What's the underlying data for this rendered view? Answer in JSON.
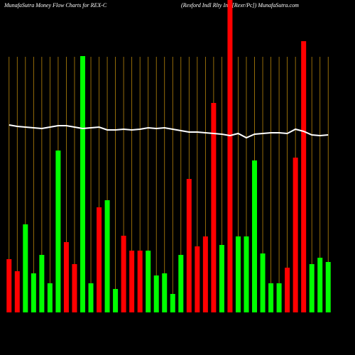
{
  "chart_data": {
    "type": "bar",
    "title": "MunafaSutra  Money Flow  Charts for REX-C",
    "subtitle": "(Rexford Indl Rlty Inc [Rexr/Pc]) MunafaSutra.com",
    "categories": [
      null,
      null,
      null,
      null,
      null,
      null,
      null,
      null,
      null,
      null,
      null,
      null,
      null,
      null,
      null,
      null,
      null,
      null,
      null,
      null,
      null,
      null,
      null,
      null,
      null,
      null,
      null,
      null,
      null,
      null,
      null,
      null,
      null,
      null,
      null,
      null,
      null,
      null,
      null,
      null
    ],
    "values": [
      75,
      58,
      124,
      55,
      81,
      41,
      228,
      99,
      68,
      361,
      41,
      148,
      158,
      33,
      108,
      87,
      87,
      87,
      52,
      55,
      26,
      81,
      188,
      93,
      107,
      295,
      95,
      440,
      107,
      107,
      214,
      83,
      41,
      41,
      63,
      218,
      382,
      68,
      77,
      71
    ],
    "colors": [
      "#ff0000",
      "#ff0000",
      "#00ff00",
      "#00ff00",
      "#00ff00",
      "#00ff00",
      "#00ff00",
      "#ff0000",
      "#ff0000",
      "#00ff00",
      "#00ff00",
      "#ff0000",
      "#00ff00",
      "#00ff00",
      "#ff0000",
      "#ff0000",
      "#ff0000",
      "#00ff00",
      "#00ff00",
      "#00ff00",
      "#00ff00",
      "#00ff00",
      "#ff0000",
      "#ff0000",
      "#ff0000",
      "#ff0000",
      "#00ff00",
      "#ff0000",
      "#00ff00",
      "#00ff00",
      "#00ff00",
      "#00ff00",
      "#00ff00",
      "#00ff00",
      "#ff0000",
      "#ff0000",
      "#ff0000",
      "#00ff00",
      "#00ff00",
      "#00ff00"
    ],
    "line": {
      "color": "#ffffff",
      "values": [
        264,
        262,
        261,
        260,
        259,
        261,
        263,
        263,
        261,
        259,
        260,
        261,
        257,
        257,
        258,
        257,
        258,
        260,
        259,
        260,
        258,
        256,
        254,
        254,
        253,
        252,
        251,
        249,
        252,
        246,
        251,
        252,
        253,
        253,
        252,
        258,
        255,
        250,
        249,
        250
      ]
    },
    "ylim": [
      0,
      440
    ],
    "grid": true,
    "grid_color": "#b8860b"
  }
}
